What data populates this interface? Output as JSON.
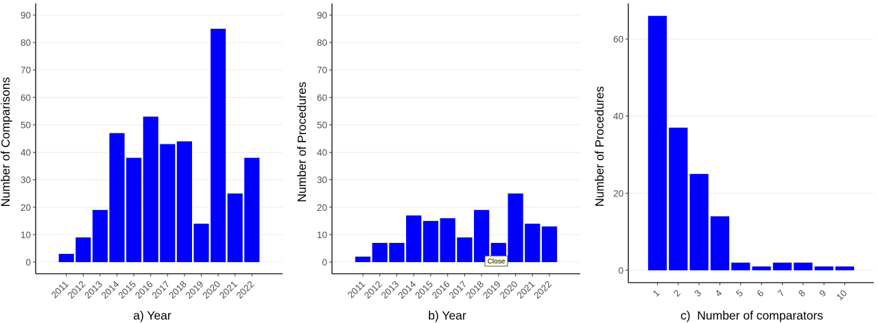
{
  "bar_color": "#0000ff",
  "grid_color": "#ebebeb",
  "tooltip": {
    "label": "Close"
  },
  "chart_data": [
    {
      "type": "bar",
      "categories": [
        "2011",
        "2012",
        "2013",
        "2014",
        "2015",
        "2016",
        "2017",
        "2018",
        "2019",
        "2020",
        "2021",
        "2022"
      ],
      "values": [
        3,
        9,
        19,
        47,
        38,
        53,
        43,
        44,
        14,
        85,
        25,
        38
      ],
      "xlabel": "a) Year",
      "ylabel": "Number of Comparisons",
      "ylim": [
        0,
        90
      ],
      "yticks": [
        0,
        10,
        20,
        30,
        40,
        50,
        60,
        70,
        80,
        90
      ],
      "grid": true,
      "x_tick_rotation": 45
    },
    {
      "type": "bar",
      "categories": [
        "2011",
        "2012",
        "2013",
        "2014",
        "2015",
        "2016",
        "2017",
        "2018",
        "2019",
        "2020",
        "2021",
        "2022"
      ],
      "values": [
        2,
        7,
        7,
        17,
        15,
        16,
        9,
        19,
        7,
        25,
        14,
        13
      ],
      "xlabel": "b) Year",
      "ylabel": "Number of Procedures",
      "ylim": [
        0,
        90
      ],
      "yticks": [
        0,
        10,
        20,
        30,
        40,
        50,
        60,
        70,
        80,
        90
      ],
      "grid": true,
      "x_tick_rotation": 45
    },
    {
      "type": "bar",
      "categories": [
        "1",
        "2",
        "3",
        "4",
        "5",
        "6",
        "7",
        "8",
        "9",
        "10"
      ],
      "values": [
        66,
        37,
        25,
        14,
        2,
        1,
        2,
        2,
        1,
        1
      ],
      "xlabel": "c)  Number of comparators",
      "ylabel": "Number of Procedures",
      "ylim": [
        0,
        69
      ],
      "yticks": [
        0,
        20,
        40,
        60
      ],
      "grid": true,
      "x_tick_rotation": 45
    }
  ]
}
